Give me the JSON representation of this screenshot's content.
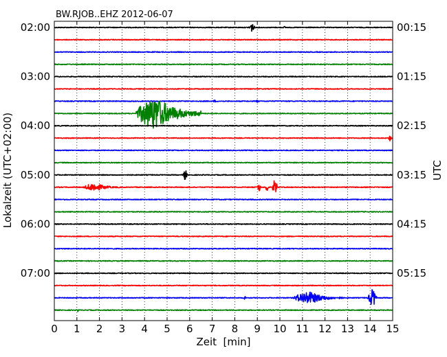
{
  "chart_data": {
    "type": "line",
    "title": "BW.RJOB..EHZ 2012-06-07",
    "xlabel": "Zeit  [min]",
    "ylabel_left": "Lokalzeit (UTC+02:00)",
    "ylabel_right": "UTC",
    "xlim": [
      0,
      15
    ],
    "x_ticks": [
      "0",
      "1",
      "2",
      "3",
      "4",
      "5",
      "6",
      "7",
      "8",
      "9",
      "10",
      "11",
      "12",
      "13",
      "14",
      "15"
    ],
    "trace_count": 24,
    "trace_colors": [
      "#000000",
      "#ff0000",
      "#0000ff",
      "#008000"
    ],
    "left_ticks": [
      {
        "trace": 0,
        "label": "02:00"
      },
      {
        "trace": 4,
        "label": "03:00"
      },
      {
        "trace": 8,
        "label": "04:00"
      },
      {
        "trace": 12,
        "label": "05:00"
      },
      {
        "trace": 16,
        "label": "06:00"
      },
      {
        "trace": 20,
        "label": "07:00"
      }
    ],
    "right_ticks": [
      {
        "trace": 0,
        "label": "00:15"
      },
      {
        "trace": 4,
        "label": "01:15"
      },
      {
        "trace": 8,
        "label": "02:15"
      },
      {
        "trace": 12,
        "label": "03:15"
      },
      {
        "trace": 16,
        "label": "04:15"
      },
      {
        "trace": 20,
        "label": "05:15"
      }
    ],
    "grid": "vertical dotted",
    "events": [
      {
        "trace": 0,
        "start_min": 8.6,
        "end_min": 8.9,
        "amplitude": 0.35
      },
      {
        "trace": 0,
        "start_min": 10.15,
        "end_min": 10.25,
        "amplitude": 0.1
      },
      {
        "trace": 6,
        "start_min": 7.0,
        "end_min": 7.2,
        "amplitude": 0.1
      },
      {
        "trace": 6,
        "start_min": 8.9,
        "end_min": 9.1,
        "amplitude": 0.1
      },
      {
        "trace": 7,
        "start_min": 3.6,
        "end_min": 6.5,
        "amplitude": 1.4
      },
      {
        "trace": 9,
        "start_min": 14.8,
        "end_min": 14.95,
        "amplitude": 0.25
      },
      {
        "trace": 12,
        "start_min": 5.7,
        "end_min": 5.9,
        "amplitude": 0.4
      },
      {
        "trace": 13,
        "start_min": 1.3,
        "end_min": 2.9,
        "amplitude": 0.35
      },
      {
        "trace": 13,
        "start_min": 9.0,
        "end_min": 9.15,
        "amplitude": 0.4
      },
      {
        "trace": 13,
        "start_min": 9.35,
        "end_min": 9.5,
        "amplitude": 0.4
      },
      {
        "trace": 13,
        "start_min": 9.65,
        "end_min": 9.9,
        "amplitude": 0.6
      },
      {
        "trace": 22,
        "start_min": 8.4,
        "end_min": 8.5,
        "amplitude": 0.2
      },
      {
        "trace": 22,
        "start_min": 10.6,
        "end_min": 12.8,
        "amplitude": 0.55
      },
      {
        "trace": 22,
        "start_min": 13.9,
        "end_min": 14.3,
        "amplitude": 0.7
      },
      {
        "trace": 23,
        "start_min": 1.0,
        "end_min": 1.1,
        "amplitude": 0.15
      }
    ]
  }
}
